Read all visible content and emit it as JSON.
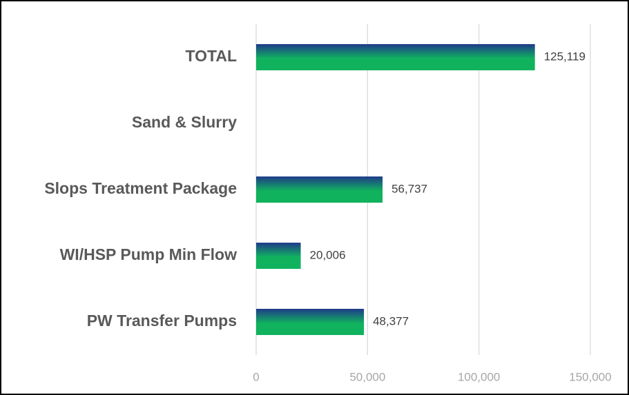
{
  "chart_data": {
    "type": "bar",
    "orientation": "horizontal",
    "categories": [
      "TOTAL",
      "Sand & Slurry",
      "Slops Treatment Package",
      "WI/HSP Pump Min Flow",
      "PW Transfer Pumps"
    ],
    "values": [
      125119,
      null,
      56737,
      20006,
      48377
    ],
    "value_labels": [
      "125,119",
      null,
      "56,737",
      "20,006",
      "48,377"
    ],
    "colors": [
      "#1f3a8a",
      "#10b25e"
    ],
    "xlim": [
      0,
      150000
    ],
    "xticks": [
      0,
      {
        "value": 50000,
        "label": "50,000"
      },
      {
        "value": 100000,
        "label": "100,000"
      },
      {
        "value": 150000,
        "label": "150,000"
      }
    ],
    "grid": true
  }
}
